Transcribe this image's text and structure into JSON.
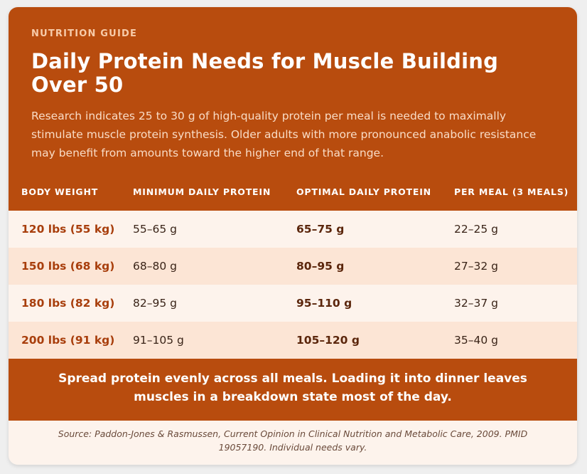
{
  "header": {
    "eyebrow": "NUTRITION GUIDE",
    "title": "Daily Protein Needs for Muscle Building Over 50",
    "intro": "Research indicates 25 to 30 g of high-quality protein per meal is needed to maximally stimulate muscle protein synthesis. Older adults with more pronounced anabolic resistance may benefit from amounts toward the higher end of that range."
  },
  "table": {
    "columns": [
      "BODY WEIGHT",
      "MINIMUM DAILY PROTEIN",
      "OPTIMAL DAILY PROTEIN",
      "PER MEAL (3 MEALS)"
    ],
    "rows": [
      {
        "weight": "120 lbs (55 kg)",
        "minimum": "55–65 g",
        "optimal": "65–75 g",
        "per_meal": "22–25 g"
      },
      {
        "weight": "150 lbs (68 kg)",
        "minimum": "68–80 g",
        "optimal": "80–95 g",
        "per_meal": "27–32 g"
      },
      {
        "weight": "180 lbs (82 kg)",
        "minimum": "82–95 g",
        "optimal": "95–110 g",
        "per_meal": "32–37 g"
      },
      {
        "weight": "200 lbs (91 kg)",
        "minimum": "91–105 g",
        "optimal": "105–120 g",
        "per_meal": "35–40 g"
      }
    ]
  },
  "tip": "Spread protein evenly across all meals. Loading it into dinner leaves muscles in a breakdown state most of the day.",
  "source": "Source: Paddon-Jones & Rasmussen, Current Opinion in Clinical Nutrition and Metabolic Care, 2009. PMID 19057190. Individual needs vary.",
  "colors": {
    "accent": "#b84c0e",
    "row_light": "#fdf3ec",
    "row_tint": "#fce5d5",
    "weight_text": "#a83e0c",
    "page_background": "#efefef"
  }
}
